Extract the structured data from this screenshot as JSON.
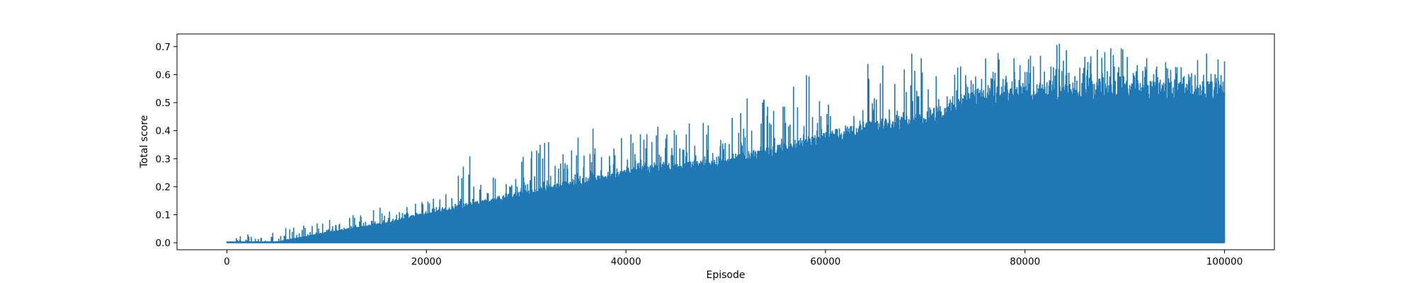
{
  "chart_data": {
    "type": "line",
    "title": "",
    "xlabel": "Episode",
    "ylabel": "Total score",
    "xlim": [
      -5000,
      105000
    ],
    "ylim": [
      -0.025,
      0.745
    ],
    "x_ticks": [
      0,
      20000,
      40000,
      60000,
      80000,
      100000
    ],
    "x_tick_labels": [
      "0",
      "20000",
      "40000",
      "60000",
      "80000",
      "100000"
    ],
    "y_ticks": [
      0.0,
      0.1,
      0.2,
      0.3,
      0.4,
      0.5,
      0.6,
      0.7
    ],
    "y_tick_labels": [
      "0.0",
      "0.1",
      "0.2",
      "0.3",
      "0.4",
      "0.5",
      "0.6",
      "0.7"
    ],
    "grid": false,
    "legend": "none",
    "series": [
      {
        "color": "#1f77b4",
        "x_range": [
          0,
          100000
        ],
        "minimum_envelope": {
          "x": [
            0,
            100000
          ],
          "y": [
            0.0,
            0.0
          ]
        },
        "maximum_envelope": {
          "x": [
            0,
            2000,
            4000,
            6000,
            8000,
            10000,
            12000,
            14000,
            16000,
            18000,
            20000,
            22000,
            24000,
            26000,
            28000,
            30000,
            32000,
            34000,
            36000,
            38000,
            40000,
            42000,
            44000,
            46000,
            48000,
            50000,
            52000,
            54000,
            56000,
            58000,
            60000,
            62000,
            64000,
            66000,
            68000,
            70000,
            72000,
            74000,
            76000,
            78000,
            80000,
            82000,
            84000,
            86000,
            88000,
            90000,
            92000,
            94000,
            96000,
            98000,
            100000
          ],
          "y": [
            0.005,
            0.035,
            0.035,
            0.06,
            0.09,
            0.08,
            0.1,
            0.12,
            0.13,
            0.14,
            0.15,
            0.18,
            0.32,
            0.26,
            0.29,
            0.31,
            0.38,
            0.37,
            0.41,
            0.43,
            0.38,
            0.42,
            0.44,
            0.43,
            0.45,
            0.44,
            0.52,
            0.55,
            0.52,
            0.63,
            0.53,
            0.55,
            0.66,
            0.63,
            0.71,
            0.65,
            0.66,
            0.7,
            0.69,
            0.69,
            0.66,
            0.7,
            0.72,
            0.68,
            0.7,
            0.7,
            0.7,
            0.69,
            0.65,
            0.68,
            0.66
          ]
        },
        "dense_band_upper": {
          "x": [
            0,
            5000,
            10000,
            15000,
            20000,
            25000,
            30000,
            35000,
            40000,
            45000,
            50000,
            55000,
            60000,
            65000,
            70000,
            75000,
            80000,
            85000,
            90000,
            95000,
            100000
          ],
          "y": [
            0.005,
            0.005,
            0.04,
            0.07,
            0.11,
            0.15,
            0.19,
            0.23,
            0.27,
            0.29,
            0.31,
            0.35,
            0.4,
            0.44,
            0.47,
            0.55,
            0.58,
            0.58,
            0.58,
            0.58,
            0.58
          ]
        }
      }
    ]
  }
}
